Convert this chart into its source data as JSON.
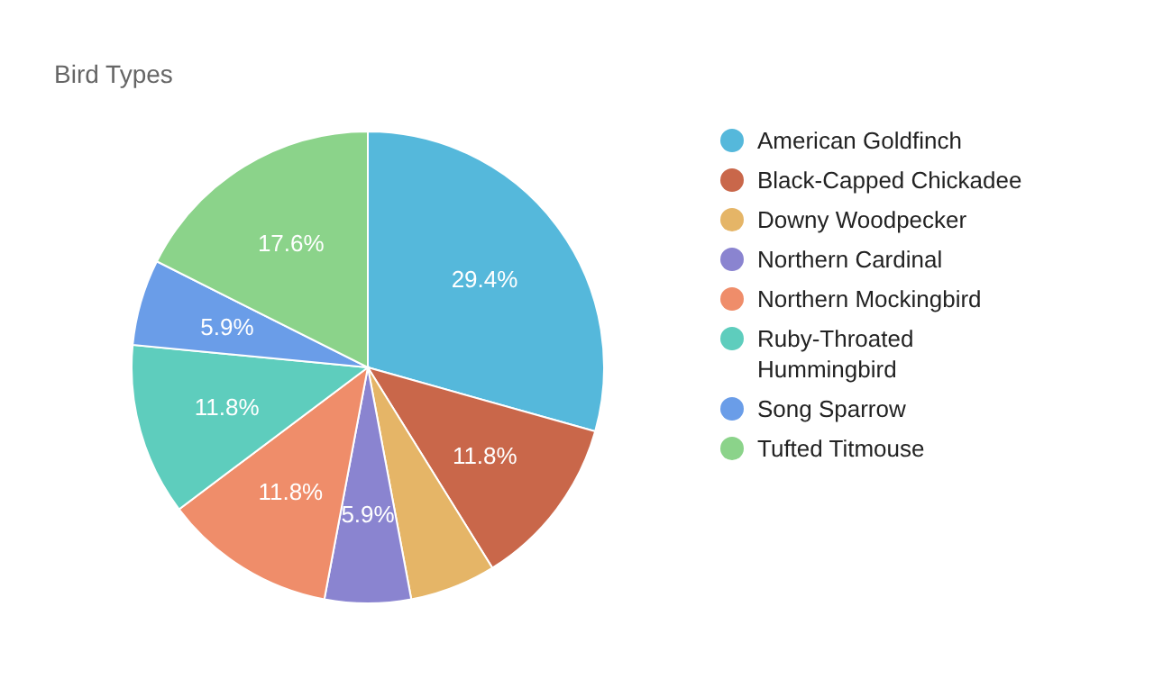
{
  "chart_data": {
    "type": "pie",
    "title": "Bird Types",
    "categories": [
      "American Goldfinch",
      "Black-Capped Chickadee",
      "Downy Woodpecker",
      "Northern Cardinal",
      "Northern Mockingbird",
      "Ruby-Throated Hummingbird",
      "Song Sparrow",
      "Tufted Titmouse"
    ],
    "values": [
      29.4,
      11.8,
      5.9,
      5.9,
      11.8,
      11.8,
      5.9,
      17.6
    ],
    "colors": [
      "#55b8db",
      "#c9674a",
      "#e5b567",
      "#8a84d0",
      "#ef8d6a",
      "#5ecdbd",
      "#6a9de8",
      "#8bd38a"
    ],
    "value_labels": [
      "29.4%",
      "11.8%",
      null,
      "5.9%",
      "11.8%",
      "11.8%",
      "5.9%",
      "17.6%"
    ],
    "legend": "right"
  }
}
